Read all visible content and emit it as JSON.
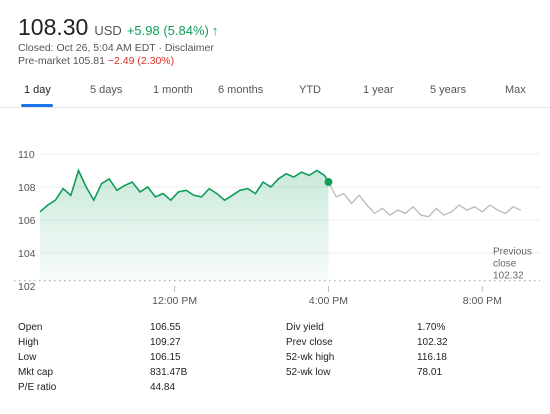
{
  "quote": {
    "price": "108.30",
    "currency": "USD",
    "change": "+5.98 (5.84%)",
    "arrow": "↑",
    "closed_text": "Closed: Oct 26, 5:04 AM EDT · Disclaimer",
    "premarket_label": "Pre-market 105.81",
    "premarket_change": "−2.49 (2.30%)"
  },
  "tabs": [
    "1 day",
    "5 days",
    "1 month",
    "6 months",
    "YTD",
    "1 year",
    "5 years",
    "Max"
  ],
  "active_tab": "1 day",
  "colors": {
    "accent": "#1a73e8",
    "positive": "#0f9d58",
    "negative": "#d93025",
    "line_after_hours": "#bdbdbd"
  },
  "chart_data": {
    "type": "line",
    "ylim": [
      102,
      110
    ],
    "y_ticks": [
      "110",
      "108",
      "106",
      "104",
      "102"
    ],
    "x_ticks": [
      "12:00 PM",
      "4:00 PM",
      "8:00 PM"
    ],
    "previous_close": {
      "label_line1": "Previous",
      "label_line2": "close",
      "value": "102.32",
      "y": 102.32
    },
    "series": [
      {
        "session": "regular",
        "x": [
          8.5,
          8.7,
          8.9,
          9.1,
          9.3,
          9.5,
          9.7,
          9.9,
          10.1,
          10.3,
          10.5,
          10.7,
          10.9,
          11.1,
          11.3,
          11.5,
          11.7,
          11.9,
          12.1,
          12.3,
          12.5,
          12.7,
          12.9,
          13.1,
          13.3,
          13.5,
          13.7,
          13.9,
          14.1,
          14.3,
          14.5,
          14.7,
          14.9,
          15.1,
          15.3,
          15.5,
          15.7,
          15.9,
          16.0
        ],
        "values": [
          106.5,
          106.9,
          107.2,
          107.9,
          107.5,
          109.0,
          108.0,
          107.2,
          108.2,
          108.5,
          107.8,
          108.1,
          108.3,
          107.7,
          108.0,
          107.4,
          107.6,
          107.2,
          107.7,
          107.8,
          107.5,
          107.4,
          107.9,
          107.6,
          107.2,
          107.5,
          107.8,
          107.9,
          107.6,
          108.3,
          108.0,
          108.5,
          108.8,
          108.6,
          108.9,
          108.7,
          109.0,
          108.7,
          108.3
        ]
      },
      {
        "session": "after-hours",
        "x": [
          16.0,
          16.2,
          16.4,
          16.6,
          16.8,
          17.0,
          17.2,
          17.4,
          17.6,
          17.8,
          18.0,
          18.2,
          18.4,
          18.6,
          18.8,
          19.0,
          19.2,
          19.4,
          19.6,
          19.8,
          20.0,
          20.2,
          20.4,
          20.6,
          20.8,
          21.0
        ],
        "values": [
          108.3,
          107.4,
          107.6,
          107.0,
          107.5,
          106.9,
          106.4,
          106.7,
          106.3,
          106.6,
          106.4,
          106.8,
          106.3,
          106.2,
          106.7,
          106.3,
          106.5,
          106.9,
          106.6,
          106.8,
          106.5,
          106.9,
          106.6,
          106.4,
          106.8,
          106.6
        ]
      }
    ]
  },
  "stats": {
    "left": [
      {
        "label": "Open",
        "value": "106.55"
      },
      {
        "label": "High",
        "value": "109.27"
      },
      {
        "label": "Low",
        "value": "106.15"
      },
      {
        "label": "Mkt cap",
        "value": "831.47B"
      },
      {
        "label": "P/E ratio",
        "value": "44.84"
      }
    ],
    "right": [
      {
        "label": "Div yield",
        "value": "1.70%"
      },
      {
        "label": "Prev close",
        "value": "102.32"
      },
      {
        "label": "52-wk high",
        "value": "116.18"
      },
      {
        "label": "52-wk low",
        "value": "78.01"
      }
    ]
  }
}
